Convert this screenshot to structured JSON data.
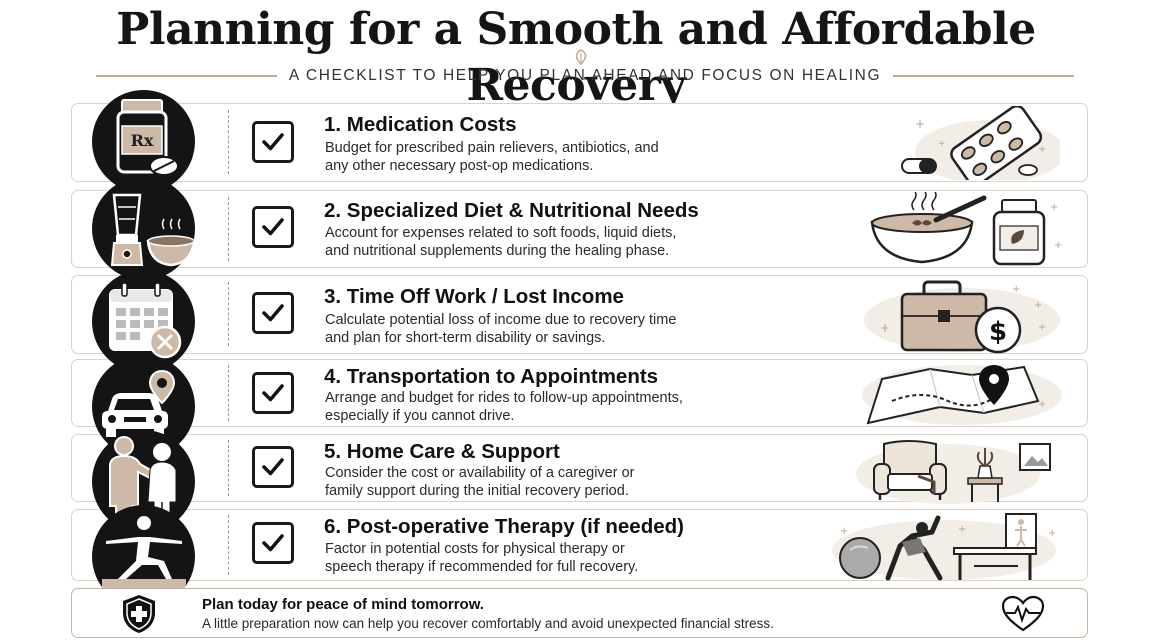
{
  "header": {
    "title": "Planning for a Smooth and Affordable Recovery",
    "subtitle": "A CHECKLIST TO HELP YOU PLAN AHEAD AND FOCUS ON HEALING"
  },
  "checklist": [
    {
      "number": "1.",
      "title": "1. Medication Costs",
      "description": "Budget for prescribed pain relievers, antibiotics, and any other necessary post-op medications.",
      "icon": "pill-bottle-icon",
      "checked": true
    },
    {
      "number": "2.",
      "title": "2. Specialized Diet & Nutritional Needs",
      "description": "Account for expenses related to soft foods, liquid diets, and nutritional supplements during the healing phase.",
      "icon": "blender-icon",
      "checked": true
    },
    {
      "number": "3.",
      "title": "3. Time Off Work / Lost Income",
      "description": "Calculate potential loss of income due to recovery time and plan for short-term disability or savings.",
      "icon": "calendar-icon",
      "checked": true
    },
    {
      "number": "4.",
      "title": "4. Transportation to Appointments",
      "description": "Arrange and budget for rides to follow-up appointments, especially if you cannot drive.",
      "icon": "car-icon",
      "checked": true
    },
    {
      "number": "5.",
      "title": "5. Home Care & Support",
      "description": "Consider the cost or availability of a caregiver or family support during the initial recovery period.",
      "icon": "caregiver-icon",
      "checked": true
    },
    {
      "number": "6.",
      "title": "6. Post-operative Therapy (if needed)",
      "description": "Factor in potential costs for physical therapy or speech therapy if recommended for full recovery.",
      "icon": "yoga-icon",
      "checked": true
    }
  ],
  "footer": {
    "title": "Plan today for peace of mind tomorrow.",
    "subtitle": "A little preparation now can help you recover comfortably and avoid unexpected financial stress.",
    "left_icon": "shield-cross-icon",
    "right_icon": "heartbeat-icon"
  },
  "colors": {
    "accent": "#c4ab93",
    "beige": "#cdb9a6",
    "dark": "#141414",
    "card_border": "#d9d3cc"
  },
  "pill_label": "Rx",
  "money_symbol": "$"
}
